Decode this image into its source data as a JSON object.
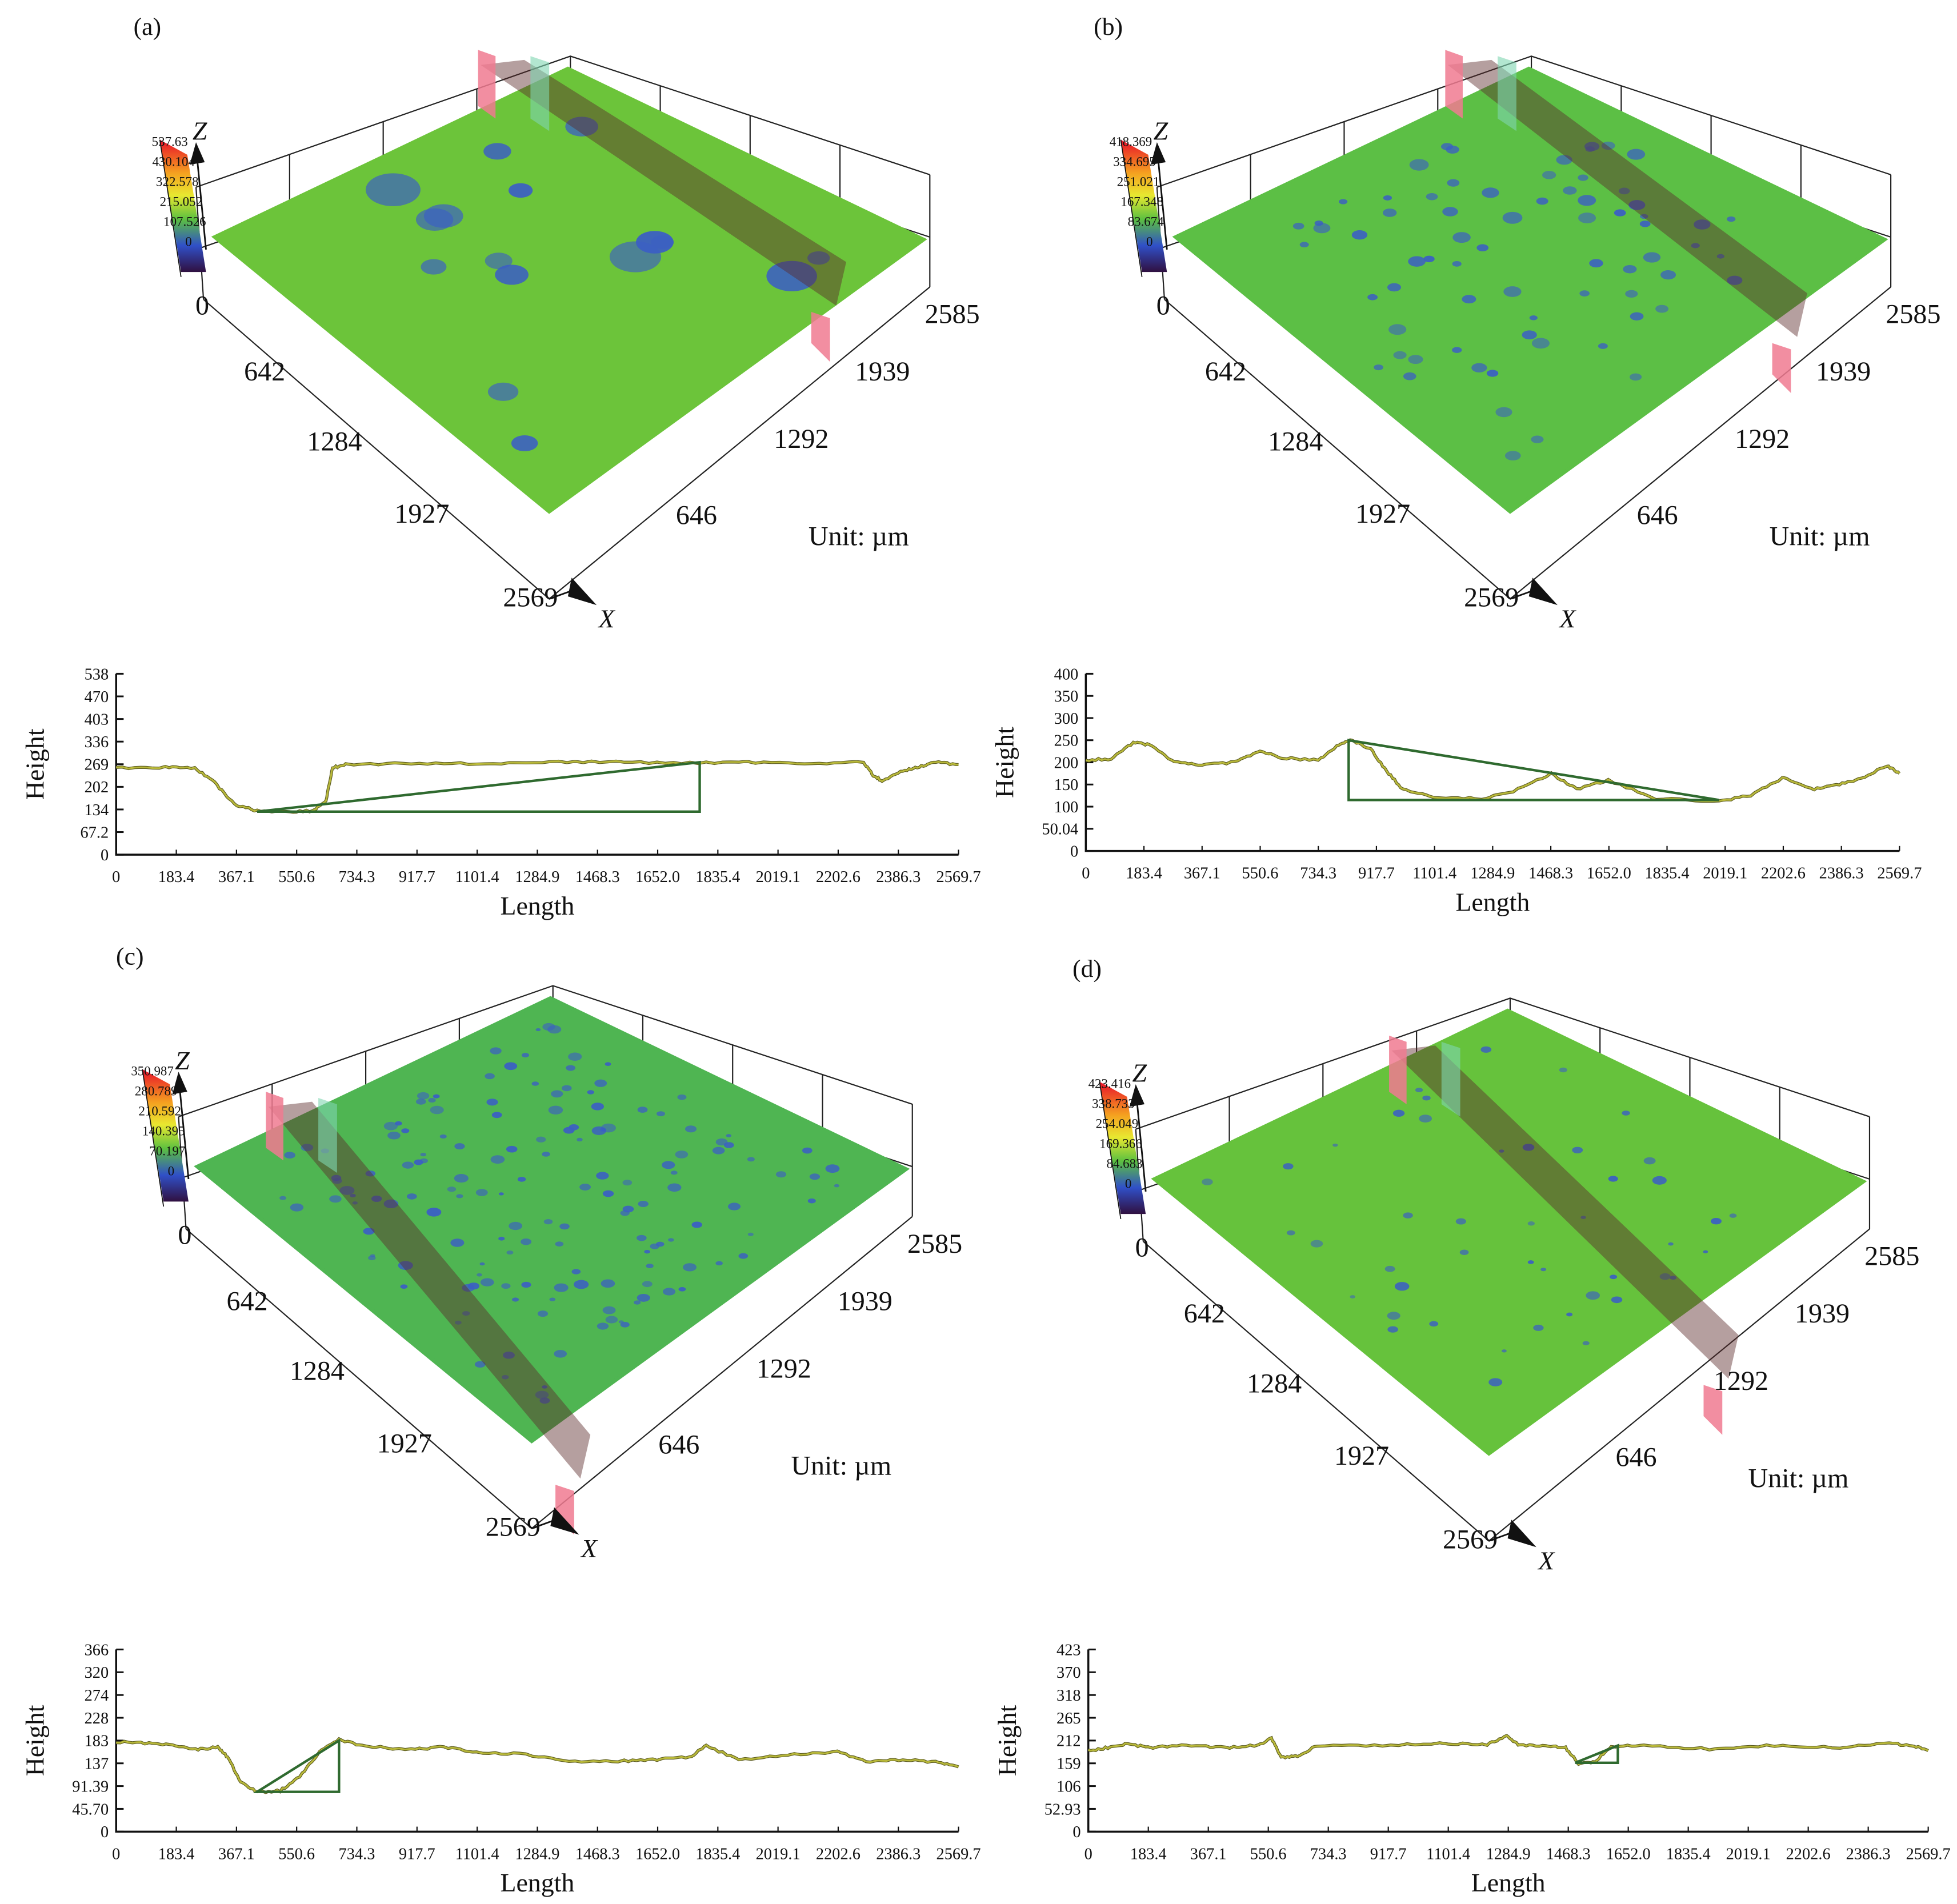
{
  "colors": {
    "surface": [
      "#6cc43a",
      "#5cbf45",
      "#4fb552",
      "#66c23c"
    ],
    "pit": "#3b5fc4",
    "cut_plane": "#f07a90",
    "profile_line": "#b8b83a",
    "profile_triangle": "#2f6a2f"
  },
  "panels": [
    {
      "letter": "(a)",
      "z_axis": "Z",
      "x_axis": "X",
      "unit": "Unit: µm",
      "colorbar_ticks": [
        "537.63",
        "430.104",
        "322.578",
        "215.052",
        "107.526",
        "0"
      ],
      "left_ticks": [
        "0",
        "642",
        "1284",
        "1927",
        "2569"
      ],
      "right_ticks": [
        "646",
        "1292",
        "1939",
        "2585"
      ]
    },
    {
      "letter": "(b)",
      "z_axis": "Z",
      "x_axis": "X",
      "unit": "Unit: µm",
      "colorbar_ticks": [
        "418.369",
        "334.695",
        "251.021",
        "167.348",
        "83.674",
        "0"
      ],
      "left_ticks": [
        "0",
        "642",
        "1284",
        "1927",
        "2569"
      ],
      "right_ticks": [
        "646",
        "1292",
        "1939",
        "2585"
      ]
    },
    {
      "letter": "(c)",
      "z_axis": "Z",
      "x_axis": "X",
      "unit": "Unit: µm",
      "colorbar_ticks": [
        "350.987",
        "280.789",
        "210.592",
        "140.395",
        "70.197",
        "0"
      ],
      "left_ticks": [
        "0",
        "642",
        "1284",
        "1927",
        "2569"
      ],
      "right_ticks": [
        "646",
        "1292",
        "1939",
        "2585"
      ]
    },
    {
      "letter": "(d)",
      "z_axis": "Z",
      "x_axis": "X",
      "unit": "Unit: µm",
      "colorbar_ticks": [
        "423.416",
        "338.733",
        "254.049",
        "169.366",
        "84.683",
        "0"
      ],
      "left_ticks": [
        "0",
        "642",
        "1284",
        "1927",
        "2569"
      ],
      "right_ticks": [
        "646",
        "1292",
        "1939",
        "2585"
      ]
    }
  ],
  "chart_data": [
    {
      "type": "line",
      "xlabel": "Length",
      "ylabel": "Height",
      "xlim": [
        0,
        2569.7
      ],
      "ylim": [
        0,
        538
      ],
      "x_ticks": [
        "0",
        "183.4",
        "367.1",
        "550.6",
        "734.3",
        "917.7",
        "1101.4",
        "1284.9",
        "1468.3",
        "1652.0",
        "1835.4",
        "2019.1",
        "2202.6",
        "2386.3",
        "2569.7"
      ],
      "y_ticks": [
        "0",
        "67.2",
        "134",
        "202",
        "269",
        "336",
        "403",
        "470",
        "538"
      ],
      "x": [
        0,
        150,
        240,
        300,
        360,
        430,
        520,
        600,
        640,
        660,
        700,
        900,
        1100,
        1300,
        1500,
        1700,
        1900,
        2100,
        2280,
        2310,
        2340,
        2400,
        2450,
        2500,
        2569.7
      ],
      "y": [
        258,
        260,
        258,
        215,
        150,
        130,
        128,
        130,
        160,
        258,
        268,
        272,
        270,
        275,
        276,
        272,
        275,
        272,
        274,
        235,
        218,
        250,
        262,
        275,
        268
      ],
      "triangle": [
        [
          430,
          128
        ],
        [
          1780,
          275
        ],
        [
          1780,
          128
        ]
      ]
    },
    {
      "type": "line",
      "xlabel": "Length",
      "ylabel": "Height",
      "xlim": [
        0,
        2569.7
      ],
      "ylim": [
        0,
        400
      ],
      "x_ticks": [
        "0",
        "183.4",
        "367.1",
        "550.6",
        "734.3",
        "917.7",
        "1101.4",
        "1284.9",
        "1468.3",
        "1652.0",
        "1835.4",
        "2019.1",
        "2202.6",
        "2386.3",
        "2569.7"
      ],
      "y_ticks": [
        "0",
        "50.04",
        "100",
        "150",
        "200",
        "250",
        "300",
        "350",
        "400"
      ],
      "x": [
        0,
        80,
        150,
        200,
        280,
        367,
        470,
        550,
        620,
        734,
        800,
        840,
        900,
        950,
        1000,
        1100,
        1250,
        1350,
        1470,
        1550,
        1650,
        1800,
        2000,
        2100,
        2200,
        2300,
        2380,
        2450,
        2530,
        2569.7
      ],
      "y": [
        205,
        208,
        245,
        240,
        200,
        195,
        200,
        225,
        210,
        205,
        240,
        250,
        230,
        180,
        140,
        122,
        118,
        135,
        175,
        140,
        160,
        118,
        112,
        125,
        165,
        140,
        150,
        165,
        192,
        175
      ],
      "triangle": [
        [
          830,
          250
        ],
        [
          830,
          115
        ],
        [
          2000,
          115
        ]
      ]
    },
    {
      "type": "line",
      "xlabel": "Length",
      "ylabel": "Height",
      "xlim": [
        0,
        2569.7
      ],
      "ylim": [
        0,
        366
      ],
      "x_ticks": [
        "0",
        "183.4",
        "367.1",
        "550.6",
        "734.3",
        "917.7",
        "1101.4",
        "1284.9",
        "1468.3",
        "1652.0",
        "1835.4",
        "2019.1",
        "2202.6",
        "2386.3",
        "2569.7"
      ],
      "y_ticks": [
        "0",
        "45.70",
        "91.39",
        "137",
        "183",
        "228",
        "274",
        "320",
        "366"
      ],
      "x": [
        0,
        100,
        183,
        250,
        310,
        340,
        380,
        430,
        500,
        560,
        620,
        680,
        750,
        900,
        1000,
        1100,
        1250,
        1400,
        1550,
        1650,
        1750,
        1800,
        1900,
        2050,
        2200,
        2300,
        2400,
        2500,
        2569.7
      ],
      "y": [
        180,
        178,
        172,
        165,
        170,
        150,
        100,
        80,
        82,
        110,
        160,
        185,
        172,
        165,
        170,
        160,
        155,
        140,
        142,
        145,
        150,
        172,
        145,
        155,
        160,
        140,
        145,
        140,
        130
      ],
      "triangle": [
        [
          430,
          80
        ],
        [
          680,
          183
        ],
        [
          680,
          80
        ]
      ]
    },
    {
      "type": "line",
      "xlabel": "Length",
      "ylabel": "Height",
      "xlim": [
        0,
        2569.7
      ],
      "ylim": [
        0,
        423
      ],
      "x_ticks": [
        "0",
        "183.4",
        "367.1",
        "550.6",
        "734.3",
        "917.7",
        "1101.4",
        "1284.9",
        "1468.3",
        "1652.0",
        "1835.4",
        "2019.1",
        "2202.6",
        "2386.3",
        "2569.7"
      ],
      "y_ticks": [
        "0",
        "52.93",
        "106",
        "159",
        "212",
        "265",
        "318",
        "370",
        "423"
      ],
      "x": [
        0,
        60,
        120,
        183,
        300,
        420,
        520,
        560,
        590,
        640,
        700,
        900,
        1100,
        1220,
        1280,
        1320,
        1400,
        1460,
        1500,
        1550,
        1600,
        1700,
        1900,
        2100,
        2300,
        2450,
        2520,
        2569.7
      ],
      "y": [
        188,
        195,
        205,
        195,
        200,
        195,
        200,
        218,
        172,
        175,
        200,
        200,
        205,
        202,
        222,
        200,
        200,
        195,
        158,
        162,
        198,
        200,
        192,
        200,
        195,
        205,
        200,
        188
      ],
      "triangle": [
        [
          1490,
          160
        ],
        [
          1620,
          200
        ],
        [
          1620,
          160
        ]
      ]
    }
  ]
}
